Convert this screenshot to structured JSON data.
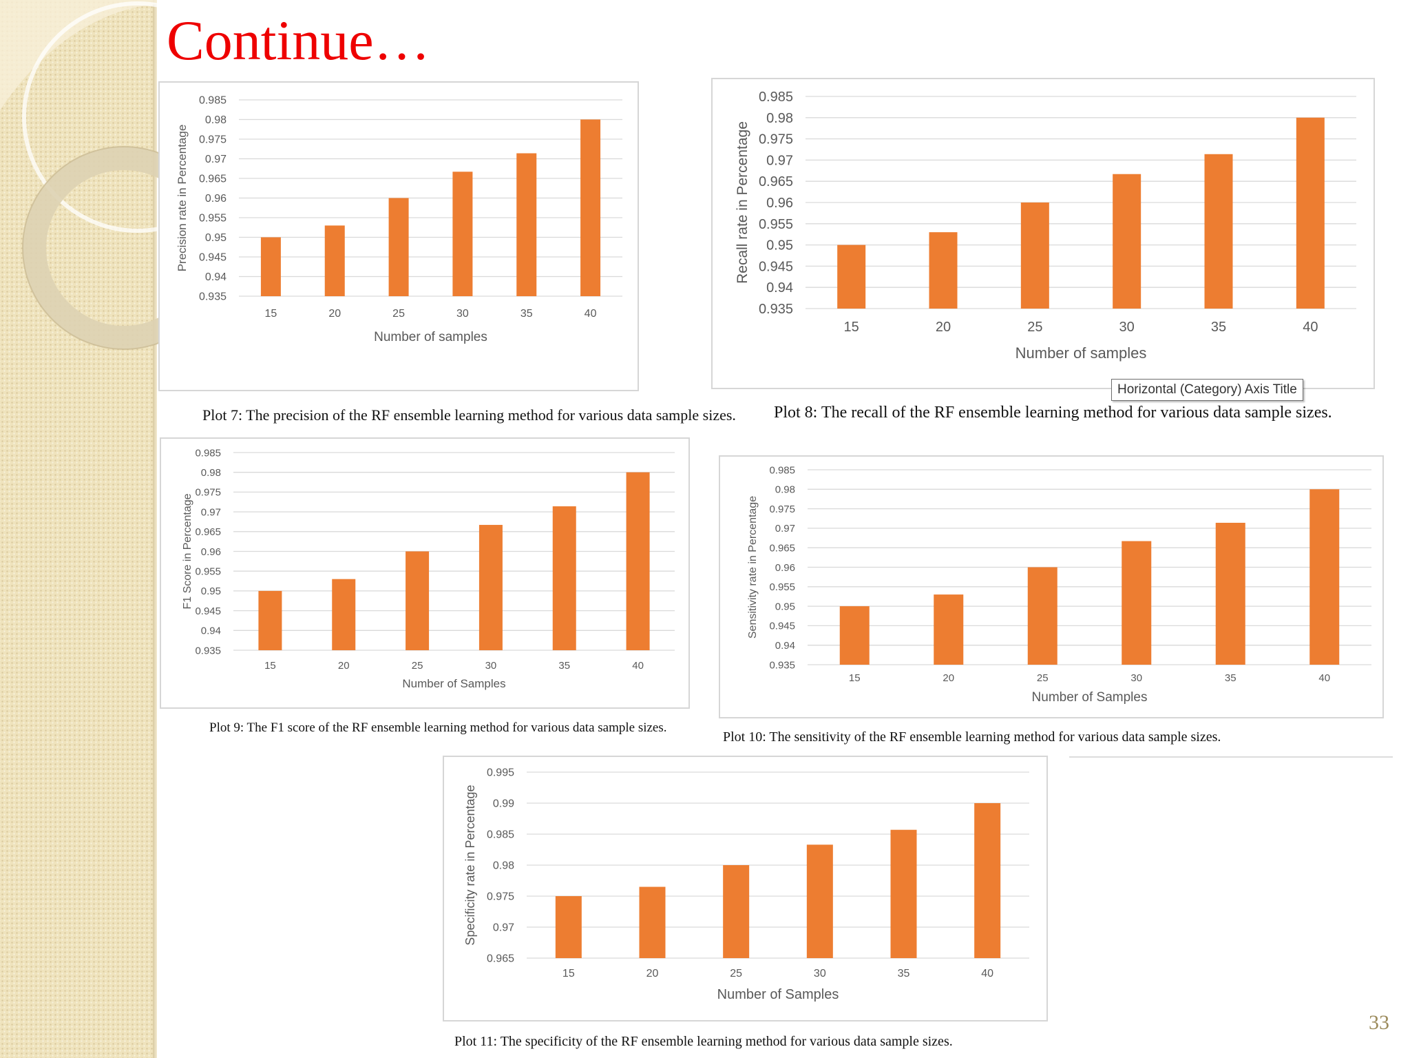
{
  "slide": {
    "title": "Continue…",
    "page_number": "33",
    "tooltip": "Horizontal (Category) Axis Title"
  },
  "colors": {
    "bar": "#ed7d31",
    "title": "#ee0000",
    "grid": "#d9d9d9",
    "tick_text": "#595959"
  },
  "chart_data": [
    {
      "id": "plot7",
      "type": "bar",
      "caption": "Plot 7: The precision of the RF ensemble learning method for various data sample sizes.",
      "categories": [
        "15",
        "20",
        "25",
        "30",
        "35",
        "40"
      ],
      "values": [
        0.95,
        0.953,
        0.96,
        0.9667,
        0.9714,
        0.98
      ],
      "yticks": [
        "0.935",
        "0.94",
        "0.945",
        "0.95",
        "0.955",
        "0.96",
        "0.965",
        "0.97",
        "0.975",
        "0.98",
        "0.985"
      ],
      "ylim": [
        0.935,
        0.985
      ],
      "xlabel": "Number of samples",
      "ylabel": "Precision rate in Percentage",
      "grid": true
    },
    {
      "id": "plot8",
      "type": "bar",
      "caption": "Plot 8: The recall of the RF ensemble learning method for various data sample sizes.",
      "categories": [
        "15",
        "20",
        "25",
        "30",
        "35",
        "40"
      ],
      "values": [
        0.95,
        0.953,
        0.96,
        0.9667,
        0.9714,
        0.98
      ],
      "yticks": [
        "0.935",
        "0.94",
        "0.945",
        "0.95",
        "0.955",
        "0.96",
        "0.965",
        "0.97",
        "0.975",
        "0.98",
        "0.985"
      ],
      "ylim": [
        0.935,
        0.985
      ],
      "xlabel": "Number of samples",
      "ylabel": "Recall  rate in Percentage",
      "grid": true
    },
    {
      "id": "plot9",
      "type": "bar",
      "caption": "Plot 9: The F1 score of the RF ensemble learning method for various data sample sizes.",
      "categories": [
        "15",
        "20",
        "25",
        "30",
        "35",
        "40"
      ],
      "values": [
        0.95,
        0.953,
        0.96,
        0.9667,
        0.9714,
        0.98
      ],
      "yticks": [
        "0.935",
        "0.94",
        "0.945",
        "0.95",
        "0.955",
        "0.96",
        "0.965",
        "0.97",
        "0.975",
        "0.98",
        "0.985"
      ],
      "ylim": [
        0.935,
        0.985
      ],
      "xlabel": "Number of Samples",
      "ylabel": "F1 Score in Percentage",
      "grid": true
    },
    {
      "id": "plot10",
      "type": "bar",
      "caption": "Plot 10:  The sensitivity of the RF ensemble learning method for various data sample sizes.",
      "categories": [
        "15",
        "20",
        "25",
        "30",
        "35",
        "40"
      ],
      "values": [
        0.95,
        0.953,
        0.96,
        0.9667,
        0.9714,
        0.98
      ],
      "yticks": [
        "0.935",
        "0.94",
        "0.945",
        "0.95",
        "0.955",
        "0.96",
        "0.965",
        "0.97",
        "0.975",
        "0.98",
        "0.985"
      ],
      "ylim": [
        0.935,
        0.985
      ],
      "xlabel": "Number of Samples",
      "ylabel": "Sensitivity rate in Percentage",
      "grid": true
    },
    {
      "id": "plot11",
      "type": "bar",
      "caption": "Plot 11: The specificity of the RF ensemble learning method for various data sample sizes.",
      "categories": [
        "15",
        "20",
        "25",
        "30",
        "35",
        "40"
      ],
      "values": [
        0.975,
        0.9765,
        0.98,
        0.9833,
        0.9857,
        0.99
      ],
      "yticks": [
        "0.965",
        "0.97",
        "0.975",
        "0.98",
        "0.985",
        "0.99",
        "0.995"
      ],
      "ylim": [
        0.965,
        0.995
      ],
      "xlabel": "Number of Samples",
      "ylabel": "Specificity rate in Percentage",
      "grid": true
    }
  ]
}
